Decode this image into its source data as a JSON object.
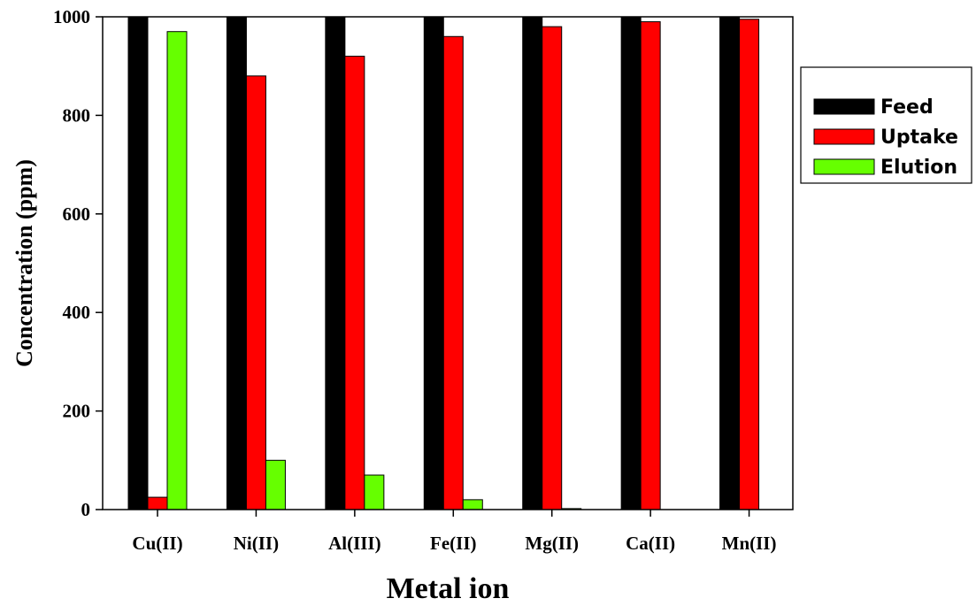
{
  "chart_data": {
    "type": "bar",
    "title": "",
    "xlabel": "Metal ion",
    "ylabel": "Concentration (ppm)",
    "ylim": [
      0,
      1000
    ],
    "yticks": [
      0,
      200,
      400,
      600,
      800,
      1000
    ],
    "categories": [
      "Cu(II)",
      "Ni(II)",
      "Al(III)",
      "Fe(II)",
      "Mg(II)",
      "Ca(II)",
      "Mn(II)"
    ],
    "series": [
      {
        "name": "Feed",
        "color": "#000000",
        "values": [
          1000,
          1000,
          1000,
          1000,
          1000,
          1000,
          1000
        ]
      },
      {
        "name": "Uptake",
        "color": "#ff0000",
        "values": [
          25,
          880,
          920,
          960,
          980,
          990,
          995
        ]
      },
      {
        "name": "Elution",
        "color": "#66ff00",
        "values": [
          970,
          100,
          70,
          20,
          2,
          0,
          0
        ]
      }
    ],
    "legend_position": "right",
    "grid": false
  }
}
